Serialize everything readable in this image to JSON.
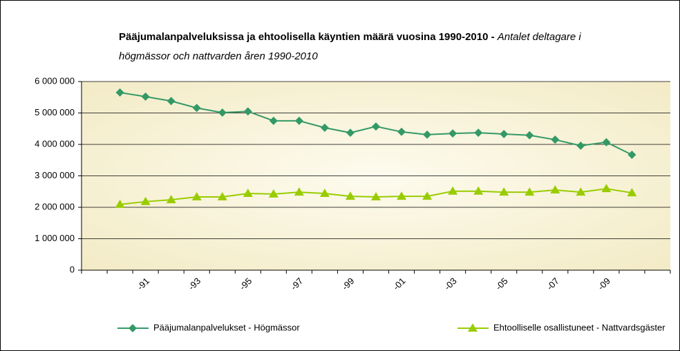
{
  "chart_data": {
    "type": "line",
    "title": "Pääjumalanpalveluksissa ja ehtoolisella käyntien määrä vuosina 1990-2010 -",
    "subtitle": "Antalet deltagare i högmässor och nattvarden åren 1990-2010",
    "categories": [
      null,
      "-91",
      null,
      "-93",
      null,
      "-95",
      null,
      "-97",
      null,
      "-99",
      null,
      "-01",
      null,
      "-03",
      null,
      "-05",
      null,
      "-07",
      null,
      "-09",
      null
    ],
    "series": [
      {
        "name": "Pääjumalanpalvelukset - Högmässor",
        "color": "#339966",
        "marker": "diamond",
        "values": [
          5650000,
          5520000,
          5380000,
          5160000,
          5010000,
          5050000,
          4750000,
          4750000,
          4530000,
          4370000,
          4570000,
          4400000,
          4310000,
          4350000,
          4370000,
          4330000,
          4290000,
          4150000,
          3960000,
          4070000,
          3670000
        ]
      },
      {
        "name": "Ehtoolliselle osallistuneet - Nattvardsgäster",
        "color": "#99cc00",
        "marker": "triangle",
        "values": [
          2090000,
          2180000,
          2240000,
          2330000,
          2330000,
          2440000,
          2420000,
          2480000,
          2440000,
          2350000,
          2330000,
          2350000,
          2350000,
          2510000,
          2510000,
          2480000,
          2480000,
          2550000,
          2480000,
          2590000,
          2460000
        ]
      }
    ],
    "ylim": [
      0,
      6000000
    ],
    "yticks": [
      0,
      {
        "value": 1000000,
        "label": "1 000 000"
      },
      {
        "value": 2000000,
        "label": "2 000 000"
      },
      {
        "value": 3000000,
        "label": "3 000 000"
      },
      {
        "value": 4000000,
        "label": "4 000 000"
      },
      {
        "value": 5000000,
        "label": "5 000 000"
      },
      {
        "value": 6000000,
        "label": "6 000 000"
      }
    ],
    "grid": true,
    "legend": "bottom"
  }
}
